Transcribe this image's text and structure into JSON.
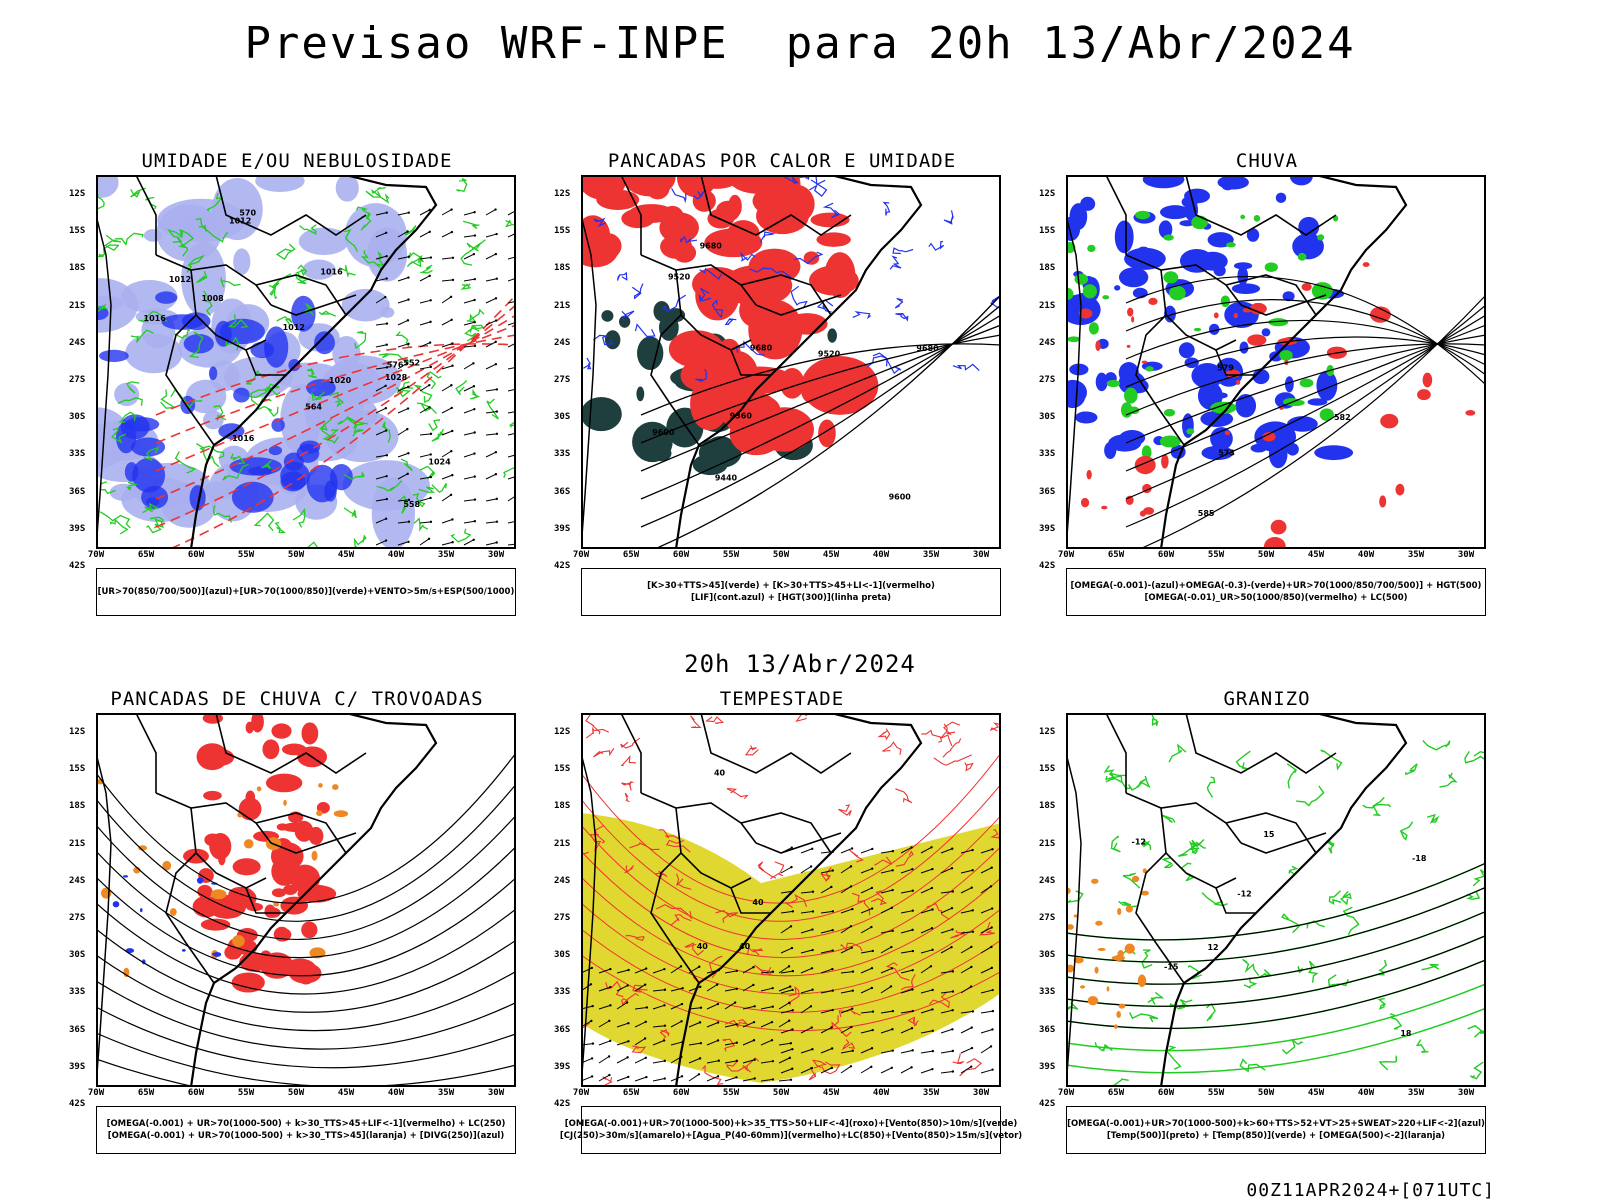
{
  "title": "Previsao WRF-INPE  para 20h 13/Abr/2024",
  "mid_title": "20h 13/Abr/2024",
  "run_id": "00Z11APR2024+[071UTC]",
  "lat_labels": [
    "12S",
    "15S",
    "18S",
    "21S",
    "24S",
    "27S",
    "30S",
    "33S",
    "36S",
    "39S",
    "42S"
  ],
  "lon_labels": [
    "70W",
    "65W",
    "60W",
    "55W",
    "50W",
    "45W",
    "40W",
    "35W",
    "30W"
  ],
  "colors": {
    "green": "#22cc22",
    "red": "#ee3333",
    "blue": "#2233ee",
    "lavender": "#aab0ee",
    "yellow": "#e0d830",
    "orange": "#ee8822",
    "darkteal": "#1f3f3f"
  },
  "panels": [
    {
      "id": "umidade",
      "title": "UMIDADE E/OU NEBULOSIDADE",
      "legend": [
        "[UR>70(850/700/500)](azul)+[UR>70(1000/850)](verde)+VENTO>5m/s+ESP(500/1000)"
      ],
      "contour_labels": [
        "1008",
        "1012",
        "1012",
        "1012",
        "1016",
        "1016",
        "1016",
        "1020",
        "1024",
        "1028",
        "570",
        "576",
        "558",
        "552",
        "564"
      ]
    },
    {
      "id": "pancadas-calor",
      "title": "PANCADAS POR CALOR E UMIDADE",
      "legend": [
        "[K>30+TTS>45](verde) + [K>30+TTS>45+LI<-1](vermelho)",
        "[LIF](cont.azul) + [HGT(300)](linha preta)"
      ],
      "contour_labels": [
        "9680",
        "9680",
        "9680",
        "9600",
        "9600",
        "9520",
        "9520",
        "9440",
        "9360"
      ]
    },
    {
      "id": "chuva",
      "title": "CHUVA",
      "legend": [
        "[OMEGA(-0.001)-(azul)+OMEGA(-0.3)-(verde)+UR>70(1000/850/700/500)] + HGT(500)",
        "[OMEGA(-0.01)_UR>50(1000/850)(vermelho) + LC(500)"
      ],
      "contour_labels": [
        "585",
        "582",
        "579",
        "573"
      ]
    },
    {
      "id": "pancadas-trovoadas",
      "title": "PANCADAS DE CHUVA C/ TROVOADAS",
      "legend": [
        "[OMEGA(-0.001) + UR>70(1000-500) + k>30_TTS>45+LIF<-1](vermelho) + LC(250)",
        "[OMEGA(-0.001) + UR>70(1000-500) + k>30_TTS>45](laranja) + [DIVG(250)](azul)"
      ],
      "contour_labels": []
    },
    {
      "id": "tempestade",
      "title": "TEMPESTADE",
      "legend": [
        "[OMEGA(-0.001)+UR>70(1000-500)+k>35_TTS>50+LIF<-4](roxo)+[Vento(850)>10m/s](verde)",
        "[CJ(250)>30m/s](amarelo)+[Agua_P(40-60mm)](vermelho)+LC(850)+[Vento(850)>15m/s](vetor)"
      ],
      "contour_labels": [
        "40",
        "40",
        "40",
        "40"
      ]
    },
    {
      "id": "granizo",
      "title": "GRANIZO",
      "legend": [
        "[OMEGA(-0.001)+UR>70(1000-500)+k>60+TTS>52+VT>25+SWEAT>220+LIF<-2](azul)",
        "[Temp(500)](preto) + [Temp(850)](verde) + [OMEGA(500)<-2](laranja)"
      ],
      "contour_labels": [
        "-12",
        "-12",
        "-15",
        "-18",
        "12",
        "15",
        "18"
      ]
    }
  ]
}
